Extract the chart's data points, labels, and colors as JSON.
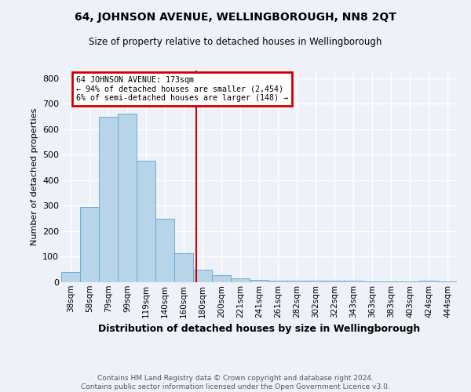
{
  "title": "64, JOHNSON AVENUE, WELLINGBOROUGH, NN8 2QT",
  "subtitle": "Size of property relative to detached houses in Wellingborough",
  "xlabel": "Distribution of detached houses by size in Wellingborough",
  "ylabel": "Number of detached properties",
  "categories": [
    "38sqm",
    "58sqm",
    "79sqm",
    "99sqm",
    "119sqm",
    "140sqm",
    "160sqm",
    "180sqm",
    "200sqm",
    "221sqm",
    "241sqm",
    "261sqm",
    "282sqm",
    "302sqm",
    "322sqm",
    "343sqm",
    "363sqm",
    "383sqm",
    "403sqm",
    "424sqm",
    "444sqm"
  ],
  "values": [
    40,
    295,
    650,
    660,
    478,
    250,
    113,
    50,
    28,
    15,
    10,
    6,
    5,
    5,
    5,
    5,
    3,
    3,
    3,
    7,
    3
  ],
  "bar_color": "#b8d4e8",
  "bar_edge_color": "#6aaed6",
  "property_line_x": 6.65,
  "annotation_line1": "64 JOHNSON AVENUE: 173sqm",
  "annotation_line2": "← 94% of detached houses are smaller (2,454)",
  "annotation_line3": "6% of semi-detached houses are larger (148) →",
  "annotation_box_color": "#cc0000",
  "ylim": [
    0,
    830
  ],
  "yticks": [
    0,
    100,
    200,
    300,
    400,
    500,
    600,
    700,
    800
  ],
  "background_color": "#eef2f8",
  "grid_color": "#ffffff",
  "footer_line1": "Contains HM Land Registry data © Crown copyright and database right 2024.",
  "footer_line2": "Contains public sector information licensed under the Open Government Licence v3.0."
}
